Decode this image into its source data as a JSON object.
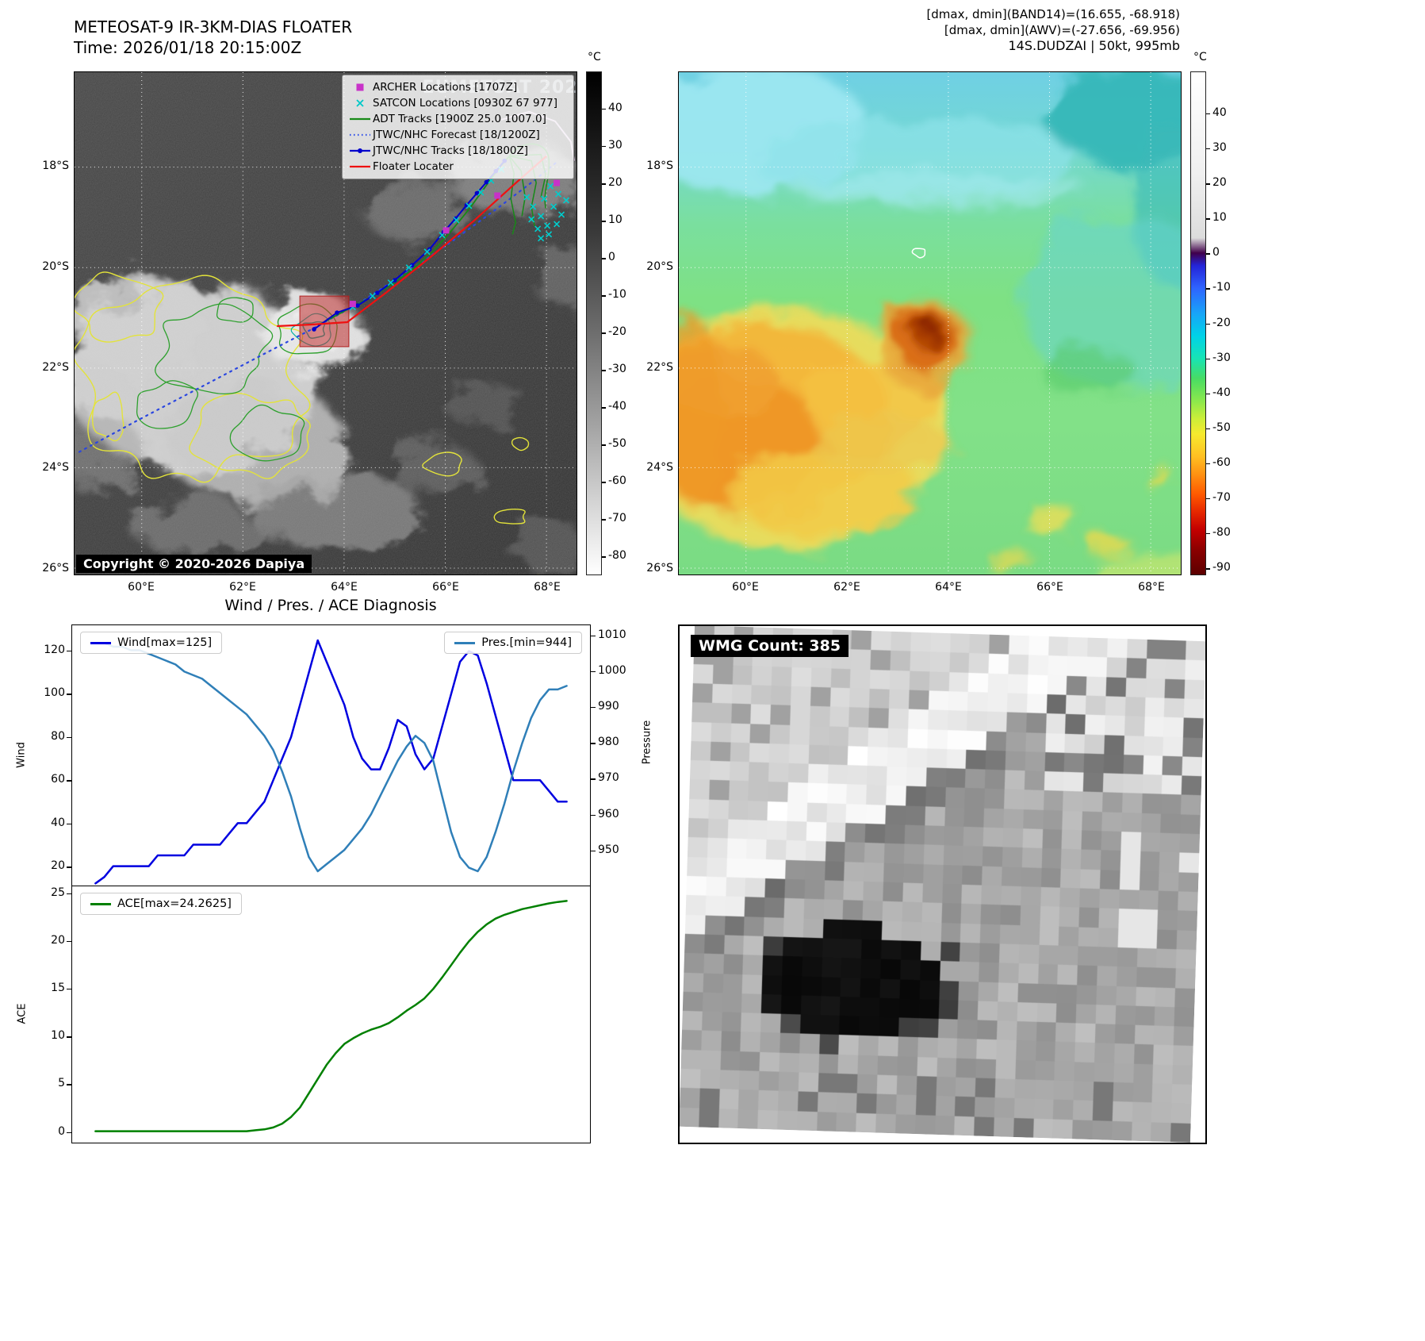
{
  "meteosat_panel": {
    "title": "METEOSAT-9 IR-3KM-DIAS FLOATER",
    "time_line": "Time: 2026/01/18 20:15:00Z",
    "watermark": "EUMETSAT 2026",
    "copyright": "Copyright © 2020-2026 Dapiya",
    "colorbar_unit": "°C",
    "colorbar_ticks": [
      40,
      30,
      20,
      10,
      0,
      -10,
      -20,
      -30,
      -40,
      -50,
      -60,
      -70,
      -80
    ],
    "lat_ticks": [
      "18°S",
      "20°S",
      "22°S",
      "24°S",
      "26°S"
    ],
    "lon_ticks": [
      "60°E",
      "62°E",
      "64°E",
      "66°E",
      "68°E"
    ],
    "legend": [
      {
        "label": "ARCHER Locations [1707Z]",
        "marker": "square",
        "color": "#c832c8"
      },
      {
        "label": "SATCON Locations [0930Z 67 977]",
        "marker": "x",
        "color": "#00c8c8"
      },
      {
        "label": "ADT Tracks [1900Z 25.0 1007.0]",
        "marker": "line",
        "color": "#178a17"
      },
      {
        "label": "JTWC/NHC Forecast [18/1200Z]",
        "marker": "dotted",
        "color": "#3050e8"
      },
      {
        "label": "JTWC/NHC Tracks [18/1800Z]",
        "marker": "line-dot",
        "color": "#0000cc"
      },
      {
        "label": "Floater Locater",
        "marker": "line",
        "color": "#ee1111"
      }
    ]
  },
  "enhanced_panel": {
    "header_lines": [
      "[dmax, dmin](BAND14)=(16.655, -68.918)",
      "[dmax, dmin](AWV)=(-27.656, -69.956)",
      "14S.DUDZAI | 50kt, 995mb"
    ],
    "colorbar_unit": "°C",
    "colorbar_ticks": [
      40,
      30,
      20,
      10,
      0,
      -10,
      -20,
      -30,
      -40,
      -50,
      -60,
      -70,
      -80,
      -90
    ],
    "lat_ticks": [
      "18°S",
      "20°S",
      "22°S",
      "24°S",
      "26°S"
    ],
    "lon_ticks": [
      "60°E",
      "62°E",
      "64°E",
      "66°E",
      "68°E"
    ]
  },
  "wmg_panel": {
    "label": "WMG Count: 385"
  },
  "chart_data": [
    {
      "type": "line",
      "title": "Wind / Pres. / ACE Diagnosis",
      "x": [
        0,
        1,
        2,
        3,
        4,
        5,
        6,
        7,
        8,
        9,
        10,
        11,
        12,
        13,
        14,
        15,
        16,
        17,
        18,
        19,
        20,
        21,
        22,
        23,
        24,
        25,
        26,
        27,
        28,
        29,
        30,
        31,
        32,
        33,
        34,
        35,
        36,
        37,
        38,
        39,
        40,
        41,
        42,
        43,
        44,
        45,
        46,
        47,
        48,
        49,
        50,
        51,
        52,
        53
      ],
      "series": [
        {
          "name": "Wind[max=125]",
          "axis": "left",
          "color": "#0000e0",
          "values": [
            12,
            15,
            20,
            20,
            20,
            20,
            20,
            25,
            25,
            25,
            25,
            30,
            30,
            30,
            30,
            35,
            40,
            40,
            45,
            50,
            60,
            70,
            80,
            95,
            110,
            125,
            115,
            105,
            95,
            80,
            70,
            65,
            65,
            75,
            88,
            85,
            72,
            65,
            70,
            85,
            100,
            115,
            120,
            118,
            105,
            90,
            75,
            60,
            60,
            60,
            60,
            55,
            50,
            50
          ]
        },
        {
          "name": "Pres.[min=944]",
          "axis": "right",
          "color": "#2f7fb8",
          "values": [
            1008,
            1008,
            1007,
            1007,
            1006,
            1006,
            1005,
            1004,
            1003,
            1002,
            1000,
            999,
            998,
            996,
            994,
            992,
            990,
            988,
            985,
            982,
            978,
            972,
            965,
            956,
            948,
            944,
            946,
            948,
            950,
            953,
            956,
            960,
            965,
            970,
            975,
            979,
            982,
            980,
            975,
            965,
            955,
            948,
            945,
            944,
            948,
            955,
            963,
            972,
            980,
            987,
            992,
            995,
            995,
            996
          ]
        }
      ],
      "ylabel_left": "Wind",
      "ylabel_right": "Pressure",
      "yticks_left": [
        20,
        40,
        60,
        80,
        100,
        120
      ],
      "yticks_right": [
        950,
        960,
        970,
        980,
        990,
        1000,
        1010
      ],
      "ylim_left": [
        11,
        132
      ],
      "ylim_right": [
        940,
        1013
      ],
      "wind_max": 125,
      "pres_min": 944,
      "legend_position": "top-left / top-right inside axes",
      "grid": false
    },
    {
      "type": "line",
      "x": [
        0,
        1,
        2,
        3,
        4,
        5,
        6,
        7,
        8,
        9,
        10,
        11,
        12,
        13,
        14,
        15,
        16,
        17,
        18,
        19,
        20,
        21,
        22,
        23,
        24,
        25,
        26,
        27,
        28,
        29,
        30,
        31,
        32,
        33,
        34,
        35,
        36,
        37,
        38,
        39,
        40,
        41,
        42,
        43,
        44,
        45,
        46,
        47,
        48,
        49,
        50,
        51,
        52,
        53
      ],
      "series": [
        {
          "name": "ACE[max=24.2625]",
          "color": "#008000",
          "values": [
            0,
            0,
            0,
            0,
            0,
            0,
            0,
            0,
            0,
            0,
            0,
            0,
            0,
            0,
            0,
            0,
            0,
            0,
            0.1,
            0.2,
            0.4,
            0.8,
            1.5,
            2.5,
            4,
            5.5,
            7,
            8.2,
            9.2,
            9.8,
            10.3,
            10.7,
            11,
            11.4,
            12,
            12.7,
            13.3,
            14,
            15,
            16.2,
            17.5,
            18.8,
            20,
            21,
            21.8,
            22.4,
            22.8,
            23.1,
            23.4,
            23.6,
            23.8,
            24,
            24.15,
            24.2625
          ]
        }
      ],
      "ylabel": "ACE",
      "yticks": [
        0,
        5,
        10,
        15,
        20,
        25
      ],
      "ylim": [
        -1.2,
        25.8
      ],
      "ace_max": 24.2625,
      "legend_position": "top-left inside axes",
      "grid": false
    }
  ]
}
